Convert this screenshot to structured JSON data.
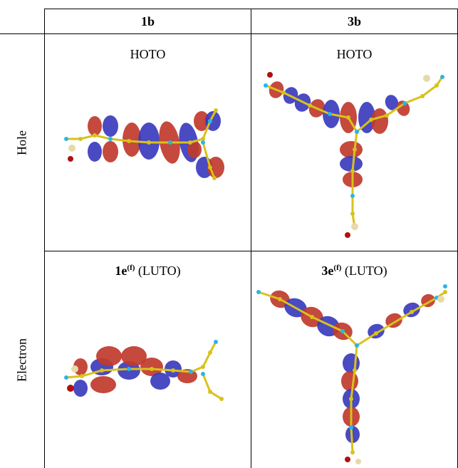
{
  "columns": [
    "1b",
    "3b"
  ],
  "rows": [
    {
      "label": "Hole",
      "cells": [
        {
          "orbital": "HOTO",
          "bold_prefix": "",
          "sup": ""
        },
        {
          "orbital": "HOTO",
          "bold_prefix": "",
          "sup": ""
        }
      ]
    },
    {
      "label": "Electron",
      "cells": [
        {
          "bold_prefix": "1e",
          "sup": "(f)",
          "orbital": " (LUTO)"
        },
        {
          "bold_prefix": "3e",
          "sup": "(f)",
          "orbital": " (LUTO)"
        }
      ]
    }
  ],
  "colors": {
    "lobe_red": "#c0392b",
    "lobe_blue": "#3b3bbd",
    "carbon": "#d8c21a",
    "hydrogen": "#29b6e6",
    "oxygen": "#b01010",
    "silicon": "#e8d9a8"
  }
}
